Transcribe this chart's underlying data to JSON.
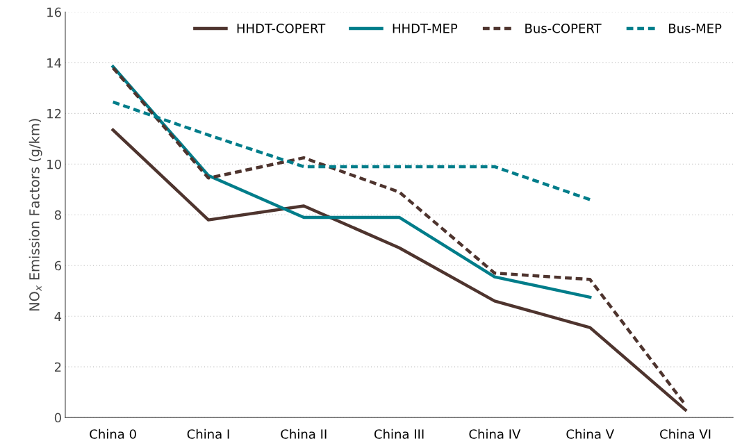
{
  "chart_data": {
    "type": "line",
    "ylabel": "NO$_{x}$ Emission Factors (g/km)",
    "categories": [
      "China 0",
      "China I",
      "China II",
      "China III",
      "China IV",
      "China V",
      "China VI"
    ],
    "series": [
      {
        "name": "HHDT-COPERT",
        "color": "#4e342e",
        "line_style": "solid",
        "values": [
          11.35,
          7.8,
          8.35,
          6.7,
          4.6,
          3.55,
          0.3
        ]
      },
      {
        "name": "HHDT-MEP",
        "color": "#007d8a",
        "line_style": "solid",
        "values": [
          13.85,
          9.55,
          7.9,
          7.9,
          5.55,
          4.75,
          null
        ]
      },
      {
        "name": "Bus-COPERT",
        "color": "#4e342e",
        "line_style": "dashed",
        "values": [
          13.8,
          9.45,
          10.25,
          8.9,
          5.7,
          5.45,
          0.5
        ]
      },
      {
        "name": "Bus-MEP",
        "color": "#007d8a",
        "line_style": "dashed",
        "values": [
          12.45,
          11.15,
          9.9,
          9.9,
          9.9,
          8.6,
          null
        ]
      }
    ],
    "ylim": [
      0,
      16
    ],
    "yticks": [
      0,
      2,
      4,
      6,
      8,
      10,
      12,
      14,
      16
    ],
    "grid": "y",
    "legend": "top right",
    "marker": "none"
  }
}
